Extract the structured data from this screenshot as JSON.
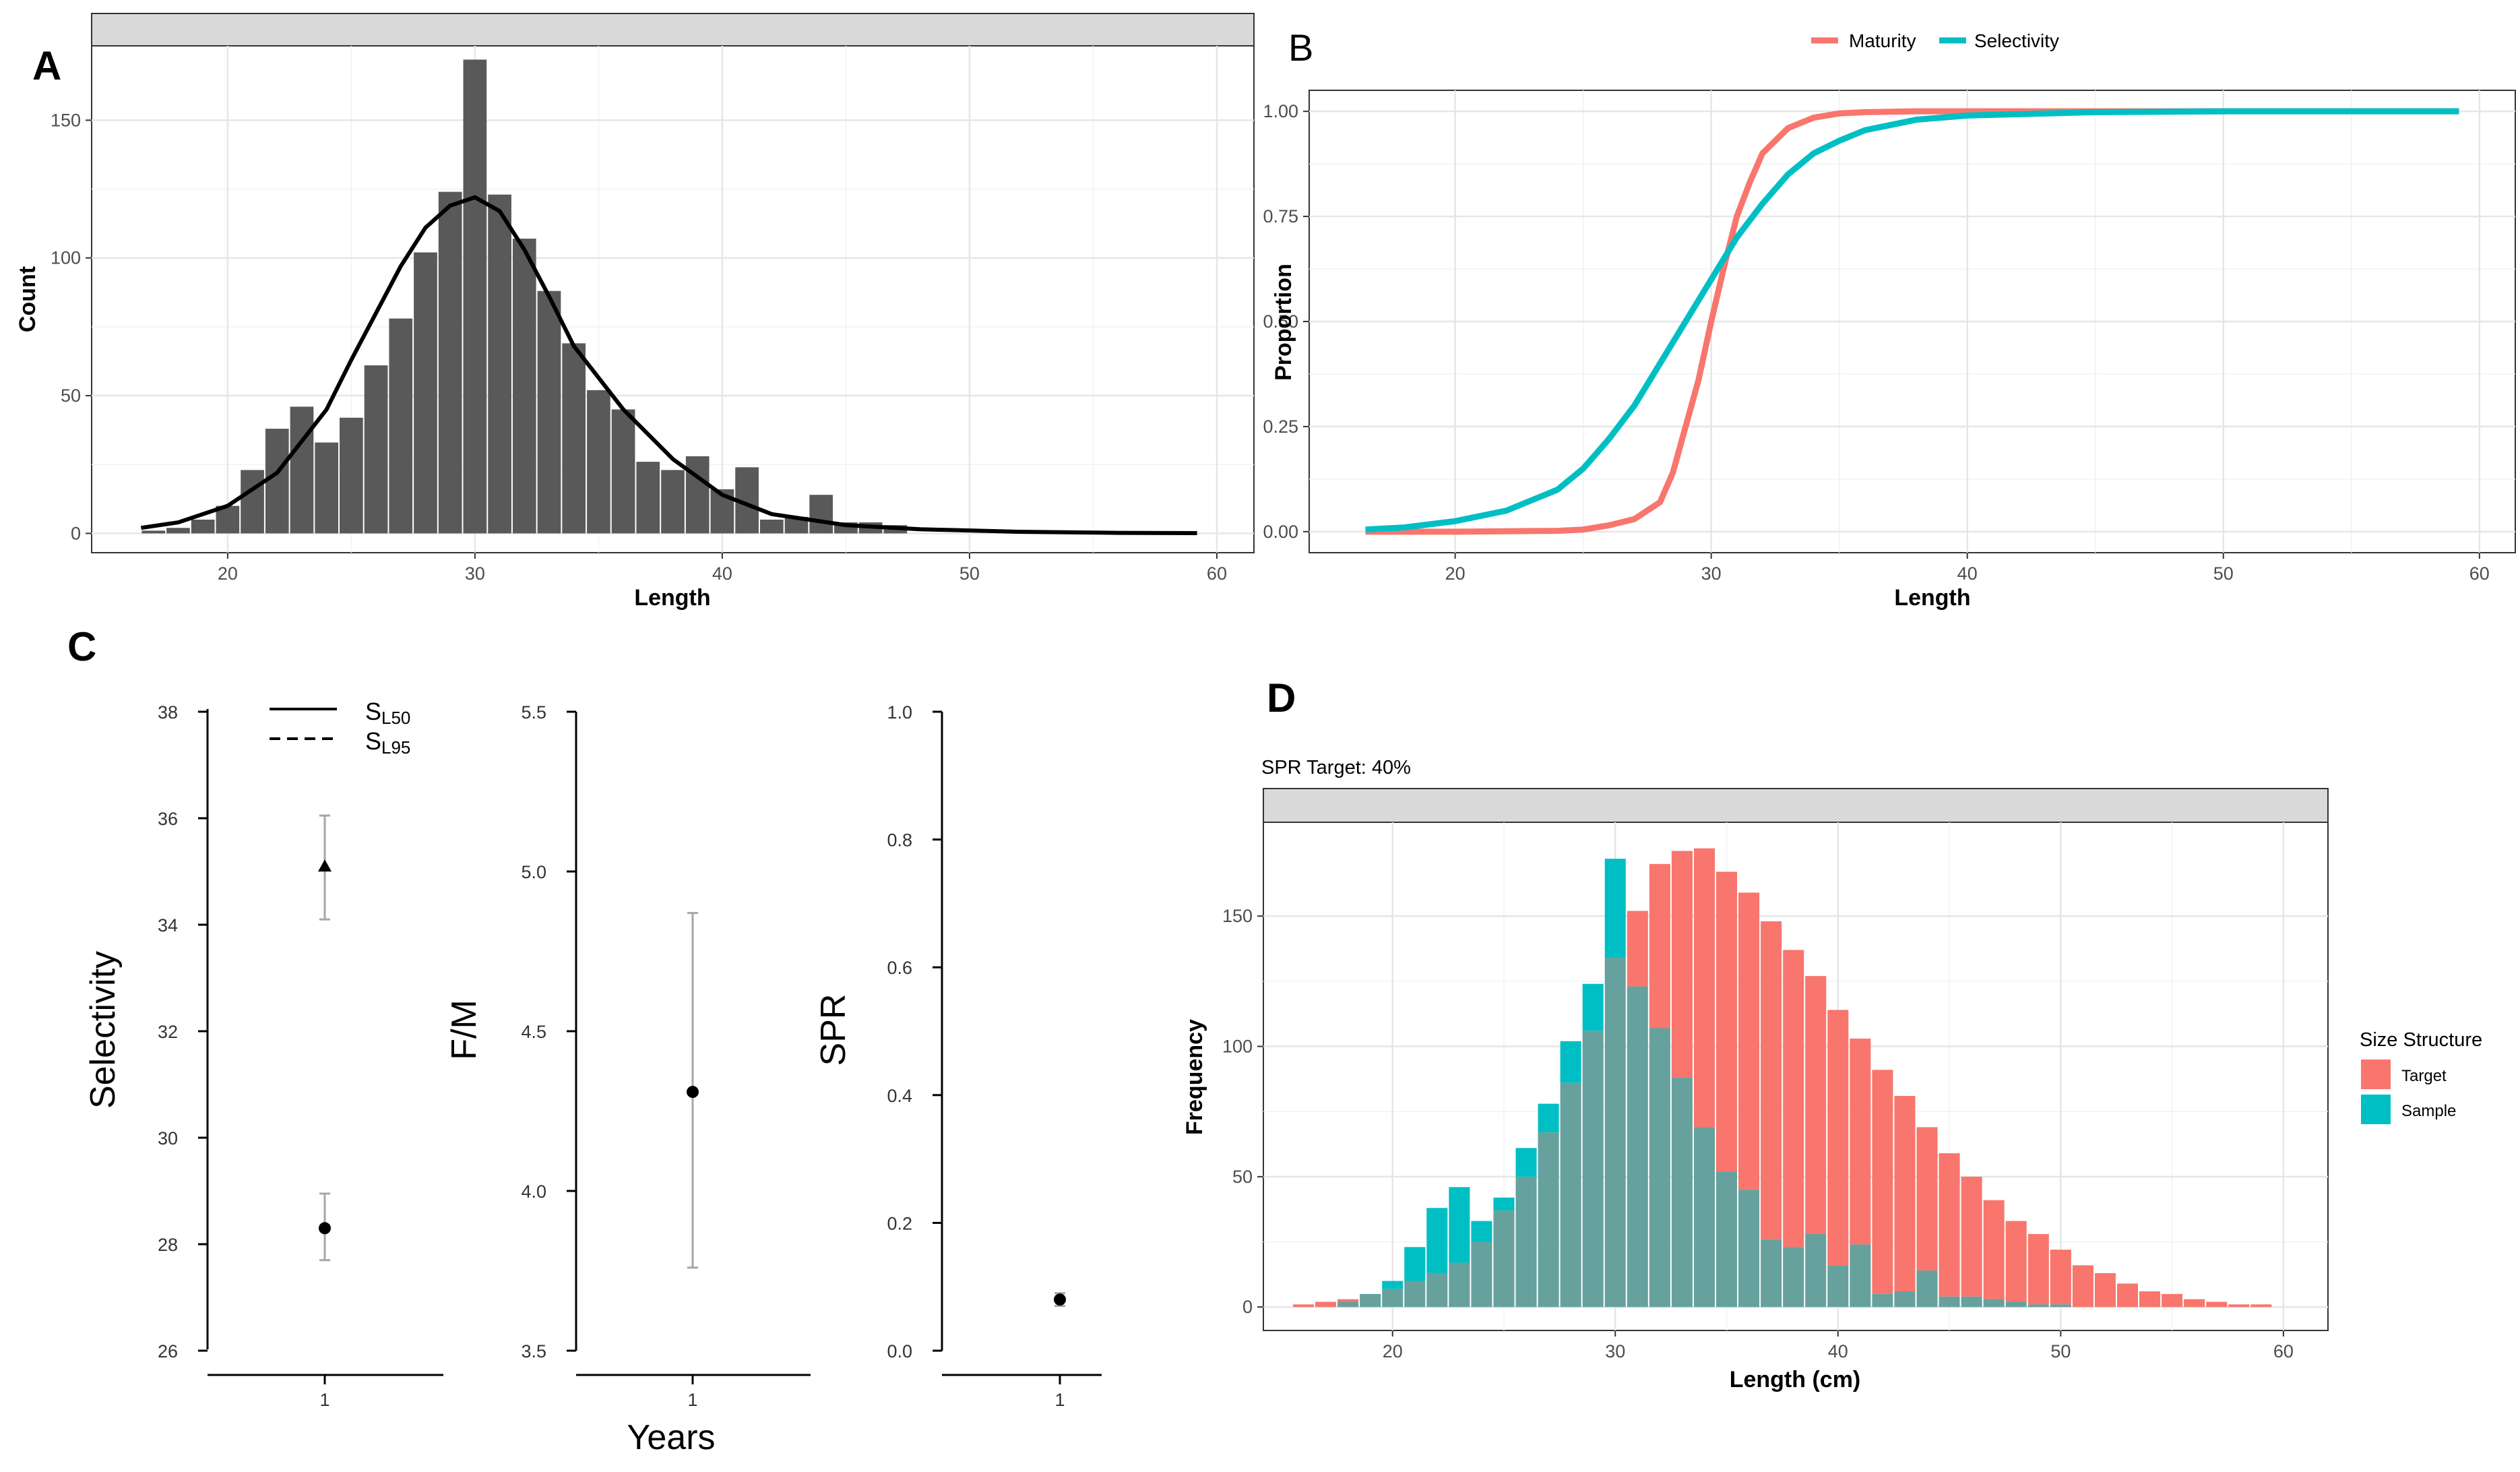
{
  "chart_data": [
    {
      "id": "A",
      "panel_label": "A",
      "type": "bar",
      "title": "",
      "xlabel": "Length",
      "ylabel": "Count",
      "xlim": [
        14.5,
        61.5
      ],
      "ylim": [
        -7,
        177
      ],
      "xticks": [
        20,
        30,
        40,
        50,
        60
      ],
      "xtick_labels": [
        "20",
        "30",
        "40",
        "50",
        "60"
      ],
      "yticks": [
        0,
        50,
        100,
        150
      ],
      "ytick_labels": [
        "0",
        "50",
        "100",
        "150"
      ],
      "bin_width": 1,
      "bins": [
        17,
        18,
        19,
        20,
        21,
        22,
        23,
        24,
        25,
        26,
        27,
        28,
        29,
        30,
        31,
        32,
        33,
        34,
        35,
        36,
        37,
        38,
        39,
        40,
        41,
        42,
        43,
        44,
        45,
        46,
        47
      ],
      "values": [
        1,
        2,
        5,
        10,
        23,
        38,
        46,
        33,
        42,
        61,
        78,
        102,
        124,
        172,
        123,
        107,
        88,
        69,
        52,
        45,
        26,
        23,
        28,
        16,
        24,
        5,
        6,
        14,
        4,
        4,
        3
      ],
      "overlay_curve": {
        "name": "fitted density",
        "x": [
          16.5,
          18,
          20,
          22,
          24,
          25,
          26,
          27,
          28,
          29,
          30,
          31,
          32,
          33,
          34,
          36,
          38,
          40,
          42,
          45,
          48,
          52,
          56,
          59.2
        ],
        "y": [
          2,
          4,
          10,
          22,
          45,
          63,
          80,
          97,
          111,
          119,
          122,
          117,
          103,
          86,
          68,
          45,
          27,
          14,
          7,
          3,
          1.5,
          0.6,
          0.2,
          0.1
        ]
      },
      "grid": true,
      "strip": true
    },
    {
      "id": "B",
      "panel_label": "B",
      "type": "line",
      "title": "",
      "xlabel": "Length",
      "ylabel": "Proportion",
      "xlim": [
        14.3,
        61.4
      ],
      "ylim": [
        -0.05,
        1.05
      ],
      "xticks": [
        20,
        30,
        40,
        50,
        60
      ],
      "xtick_labels": [
        "20",
        "30",
        "40",
        "50",
        "60"
      ],
      "yticks": [
        0,
        0.25,
        0.5,
        0.75,
        1
      ],
      "ytick_labels": [
        "0.00",
        "0.25",
        "0.50",
        "0.75",
        "1.00"
      ],
      "legend_position": "top",
      "series": [
        {
          "name": "Maturity",
          "color": "#F8766D",
          "x": [
            16.5,
            20,
            24,
            25,
            26,
            27,
            28,
            28.5,
            29,
            29.5,
            30,
            30.5,
            31,
            31.5,
            32,
            33,
            34,
            35,
            36,
            38,
            40,
            45,
            50,
            59.2
          ],
          "y": [
            0,
            0,
            0.002,
            0.005,
            0.015,
            0.03,
            0.07,
            0.14,
            0.25,
            0.36,
            0.5,
            0.63,
            0.75,
            0.83,
            0.9,
            0.96,
            0.985,
            0.995,
            0.998,
            1,
            1,
            1,
            1,
            1
          ]
        },
        {
          "name": "Selectivity",
          "color": "#00BFC4",
          "x": [
            16.5,
            18,
            20,
            22,
            24,
            25,
            26,
            27,
            28,
            29,
            30,
            31,
            32,
            33,
            34,
            35,
            36,
            38,
            40,
            45,
            50,
            59.2
          ],
          "y": [
            0.005,
            0.01,
            0.025,
            0.05,
            0.1,
            0.15,
            0.22,
            0.3,
            0.4,
            0.5,
            0.6,
            0.7,
            0.78,
            0.85,
            0.9,
            0.93,
            0.955,
            0.98,
            0.99,
            0.998,
            1,
            1
          ]
        }
      ],
      "grid": true
    },
    {
      "id": "C",
      "panel_label": "C",
      "type": "scatter",
      "xlabel": "Years",
      "subplots": [
        {
          "ylabel": "Selectivity",
          "ylim": [
            26,
            38
          ],
          "yticks": [
            26,
            28,
            30,
            32,
            34,
            36,
            38
          ],
          "ytick_labels": [
            "26",
            "28",
            "30",
            "32",
            "34",
            "36",
            "38"
          ],
          "xtick_labels": [
            "1"
          ],
          "points": [
            {
              "series": "SL50",
              "x": 1,
              "y": 28.3,
              "lower": 27.7,
              "upper": 28.95,
              "marker": "circle"
            },
            {
              "series": "SL95",
              "x": 1,
              "y": 35.1,
              "lower": 34.1,
              "upper": 36.05,
              "marker": "triangle"
            }
          ],
          "legend": [
            {
              "base": "S",
              "sub": "L50",
              "linestyle": "solid"
            },
            {
              "base": "S",
              "sub": "L95",
              "linestyle": "dashed"
            }
          ]
        },
        {
          "ylabel": "F/M",
          "ylim": [
            3.5,
            5.5
          ],
          "yticks": [
            3.5,
            4.0,
            4.5,
            5.0,
            5.5
          ],
          "ytick_labels": [
            "3.5",
            "4.0",
            "4.5",
            "5.0",
            "5.5"
          ],
          "xtick_labels": [
            "1"
          ],
          "points": [
            {
              "series": "F/M",
              "x": 1,
              "y": 4.31,
              "lower": 3.76,
              "upper": 4.87,
              "marker": "circle"
            }
          ]
        },
        {
          "ylabel": "SPR",
          "ylim": [
            0,
            1
          ],
          "yticks": [
            0,
            0.2,
            0.4,
            0.6,
            0.8,
            1.0
          ],
          "ytick_labels": [
            "0.0",
            "0.2",
            "0.4",
            "0.6",
            "0.8",
            "1.0"
          ],
          "xtick_labels": [
            "1"
          ],
          "points": [
            {
              "series": "SPR",
              "x": 1,
              "y": 0.08,
              "lower": 0.07,
              "upper": 0.09,
              "marker": "circle"
            }
          ]
        }
      ]
    },
    {
      "id": "D",
      "panel_label": "D",
      "type": "bar",
      "title": "SPR Target: 40%",
      "xlabel": "Length (cm)",
      "ylabel": "Frequency",
      "xlim": [
        14.2,
        62
      ],
      "ylim": [
        -9,
        186
      ],
      "xticks": [
        20,
        30,
        40,
        50,
        60
      ],
      "xtick_labels": [
        "20",
        "30",
        "40",
        "50",
        "60"
      ],
      "yticks": [
        0,
        50,
        100,
        150
      ],
      "ytick_labels": [
        "0",
        "50",
        "100",
        "150"
      ],
      "bin_width": 1,
      "legend_title": "Size Structure",
      "legend_position": "right",
      "bins": [
        16,
        17,
        18,
        19,
        20,
        21,
        22,
        23,
        24,
        25,
        26,
        27,
        28,
        29,
        30,
        31,
        32,
        33,
        34,
        35,
        36,
        37,
        38,
        39,
        40,
        41,
        42,
        43,
        44,
        45,
        46,
        47,
        48,
        49,
        50,
        51,
        52,
        53,
        54,
        55,
        56,
        57,
        58,
        59
      ],
      "series": [
        {
          "name": "Target",
          "color": "#F8766D",
          "values": [
            1,
            2,
            3,
            5,
            7,
            10,
            13,
            17,
            25,
            37,
            50,
            67,
            86,
            106,
            134,
            152,
            170,
            175,
            176,
            167,
            159,
            148,
            137,
            127,
            114,
            103,
            91,
            81,
            69,
            59,
            50,
            41,
            33,
            28,
            22,
            16,
            13,
            9,
            6,
            5,
            3,
            2,
            1,
            1
          ]
        },
        {
          "name": "Sample",
          "color": "#00BFC4",
          "values": [
            0,
            0,
            2,
            5,
            10,
            23,
            38,
            46,
            33,
            42,
            61,
            78,
            102,
            124,
            172,
            123,
            107,
            88,
            69,
            52,
            45,
            26,
            23,
            28,
            16,
            24,
            5,
            6,
            14,
            4,
            4,
            3,
            2,
            1,
            1,
            0,
            0,
            0,
            0,
            0,
            0,
            0,
            0,
            0
          ]
        }
      ],
      "overlap_color": "#66A19E",
      "grid": true,
      "strip": true
    }
  ]
}
